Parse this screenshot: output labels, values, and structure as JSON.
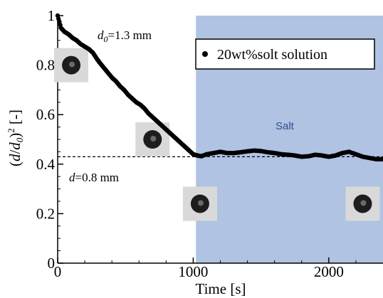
{
  "chart_data": {
    "type": "scatter",
    "xlabel": "Time [s]",
    "ylabel_parts": [
      "(",
      "d",
      "/",
      "d",
      "0",
      ")",
      "2",
      " [-]"
    ],
    "xlim": [
      0,
      2400
    ],
    "ylim": [
      0,
      1
    ],
    "xticks": [
      0,
      1000,
      2000
    ],
    "xtick_labels": [
      "0",
      "1000",
      "2000"
    ],
    "yticks": [
      0,
      0.2,
      0.4,
      0.6,
      0.8,
      1
    ],
    "ytick_labels": [
      "0",
      "0.2",
      "0.4",
      "0.6",
      "0.8",
      "1"
    ],
    "grid": false,
    "legend_position": "top-right",
    "series": [
      {
        "name": "20wt%solt solution",
        "marker": "circle",
        "color": "#000000",
        "points": [
          [
            0,
            1.0
          ],
          [
            25,
            0.95
          ],
          [
            50,
            0.935
          ],
          [
            80,
            0.925
          ],
          [
            110,
            0.91
          ],
          [
            140,
            0.9
          ],
          [
            170,
            0.885
          ],
          [
            200,
            0.875
          ],
          [
            230,
            0.865
          ],
          [
            260,
            0.85
          ],
          [
            290,
            0.825
          ],
          [
            310,
            0.81
          ],
          [
            340,
            0.79
          ],
          [
            370,
            0.77
          ],
          [
            400,
            0.75
          ],
          [
            430,
            0.735
          ],
          [
            460,
            0.715
          ],
          [
            490,
            0.7
          ],
          [
            520,
            0.68
          ],
          [
            550,
            0.665
          ],
          [
            580,
            0.65
          ],
          [
            610,
            0.64
          ],
          [
            640,
            0.625
          ],
          [
            670,
            0.605
          ],
          [
            700,
            0.59
          ],
          [
            730,
            0.575
          ],
          [
            760,
            0.56
          ],
          [
            790,
            0.545
          ],
          [
            820,
            0.53
          ],
          [
            850,
            0.515
          ],
          [
            880,
            0.5
          ],
          [
            910,
            0.485
          ],
          [
            940,
            0.47
          ],
          [
            970,
            0.455
          ],
          [
            1000,
            0.44
          ],
          [
            1030,
            0.435
          ],
          [
            1060,
            0.432
          ],
          [
            1100,
            0.44
          ],
          [
            1150,
            0.445
          ],
          [
            1200,
            0.45
          ],
          [
            1250,
            0.445
          ],
          [
            1300,
            0.445
          ],
          [
            1350,
            0.448
          ],
          [
            1400,
            0.452
          ],
          [
            1450,
            0.455
          ],
          [
            1500,
            0.453
          ],
          [
            1550,
            0.448
          ],
          [
            1600,
            0.445
          ],
          [
            1650,
            0.44
          ],
          [
            1700,
            0.438
          ],
          [
            1750,
            0.435
          ],
          [
            1800,
            0.43
          ],
          [
            1850,
            0.432
          ],
          [
            1900,
            0.438
          ],
          [
            1950,
            0.435
          ],
          [
            2000,
            0.43
          ],
          [
            2050,
            0.435
          ],
          [
            2100,
            0.445
          ],
          [
            2150,
            0.45
          ],
          [
            2200,
            0.44
          ],
          [
            2250,
            0.43
          ],
          [
            2300,
            0.425
          ],
          [
            2350,
            0.42
          ],
          [
            2400,
            0.42
          ]
        ]
      }
    ],
    "shaded_region": {
      "x_start": 1020,
      "x_end": 2400,
      "color": "#b0c3e3",
      "label": "Salt",
      "label_color": "#2e4f8f"
    },
    "reference_line": {
      "y": 0.43,
      "x_start": 0,
      "x_end": 2400,
      "style": "dashed"
    },
    "annotations": [
      {
        "id": "d0",
        "parts": [
          "d",
          "0",
          "=1.3 mm"
        ]
      },
      {
        "id": "d",
        "parts": [
          "d",
          "=0.8 mm"
        ]
      }
    ],
    "droplet_images": [
      {
        "id": "drop-1",
        "time_s": 100,
        "y": 0.8
      },
      {
        "id": "drop-2",
        "time_s": 700,
        "y": 0.5
      },
      {
        "id": "drop-3",
        "time_s": 1050,
        "y": 0.24
      },
      {
        "id": "drop-4",
        "time_s": 2250,
        "y": 0.24
      }
    ]
  }
}
